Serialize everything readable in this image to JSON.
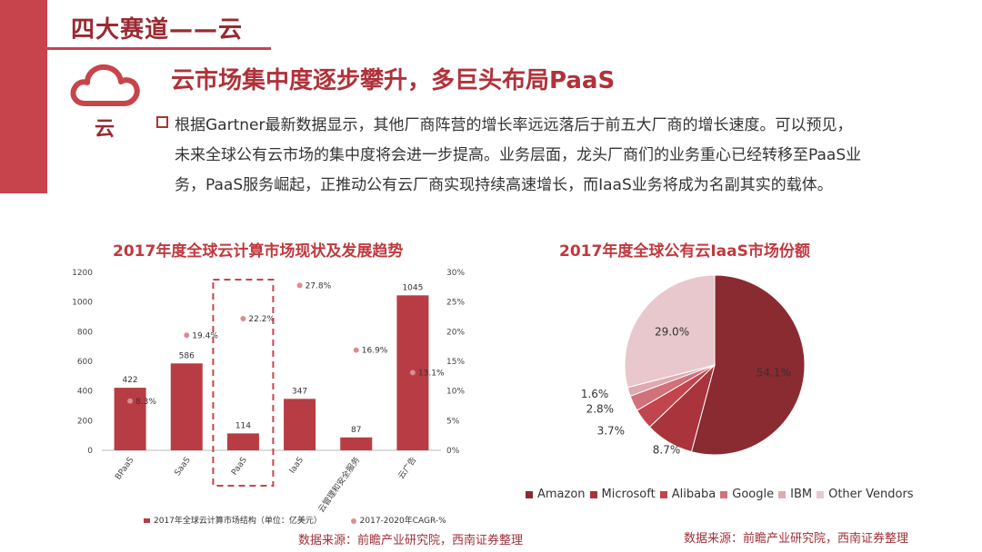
{
  "header": {
    "title": "四大赛道——云"
  },
  "section": {
    "icon": "cloud-icon",
    "icon_label": "云",
    "headline": "云市场集中度逐步攀升，多巨头布局PaaS",
    "body_lines": [
      "根据Gartner最新数据显示，其他厂商阵营的增长率远远落后于前五大厂商的增长速度。可以预见，",
      "未来全球公有云市场的集中度将会进一步提高。业务层面，龙头厂商们的业务重心已经转移至PaaS业",
      "务，PaaS服务崛起，正推动公有云厂商实现持续高速增长，而IaaS业务将成为名副其实的载体。"
    ]
  },
  "colors": {
    "accent": "#c8444c",
    "dark_accent": "#9a2a32",
    "bar": "#b83c44",
    "dot": "#dc8c92"
  },
  "chart_data": [
    {
      "type": "bar",
      "title": "2017年度全球云计算市场现状及发展趋势",
      "categories": [
        "BPaaS",
        "SaaS",
        "PaaS",
        "IaaS",
        "云管理和安全服务",
        "云广告"
      ],
      "series": [
        {
          "name": "2017年全球云计算市场结构（单位：亿美元）",
          "type": "bar",
          "axis": "left",
          "values": [
            422,
            586,
            114,
            347,
            87,
            1045
          ],
          "labels": [
            "422",
            "586",
            "114",
            "347",
            "87",
            "1045"
          ]
        },
        {
          "name": "2017-2020年CAGR-%",
          "type": "scatter",
          "axis": "right",
          "values": [
            8.3,
            19.4,
            22.2,
            27.8,
            16.9,
            13.1
          ],
          "labels": [
            "8.3%",
            "19.4%",
            "22.2%",
            "27.8%",
            "16.9%",
            "13.1%"
          ]
        }
      ],
      "y_left": {
        "min": 0,
        "max": 1200,
        "ticks": [
          "0",
          "200",
          "400",
          "600",
          "800",
          "1000",
          "1200"
        ]
      },
      "y_right": {
        "min": 0,
        "max": 30,
        "ticks": [
          "0%",
          "5%",
          "10%",
          "15%",
          "20%",
          "25%",
          "30%"
        ]
      },
      "highlight_category": "PaaS",
      "legend_position": "bottom",
      "source": "数据来源：前瞻产业研究院，西南证券整理"
    },
    {
      "type": "pie",
      "title": "2017年度全球公有云IaaS市场份额",
      "slices": [
        {
          "name": "Amazon",
          "value": 54.1,
          "label": "54.1%",
          "color": "#8a2a31"
        },
        {
          "name": "Microsoft",
          "value": 8.7,
          "label": "8.7%",
          "color": "#a9343c"
        },
        {
          "name": "Alibaba",
          "value": 3.7,
          "label": "3.7%",
          "color": "#c2444d"
        },
        {
          "name": "Google",
          "value": 2.8,
          "label": "2.8%",
          "color": "#d1717a"
        },
        {
          "name": "IBM",
          "value": 1.6,
          "label": "1.6%",
          "color": "#deaab0"
        },
        {
          "name": "Other Vendors",
          "value": 29.0,
          "label": "29.0%",
          "color": "#e8c8cc"
        }
      ],
      "legend_position": "bottom",
      "source": "数据来源：前瞻产业研究院，西南证券整理"
    }
  ]
}
